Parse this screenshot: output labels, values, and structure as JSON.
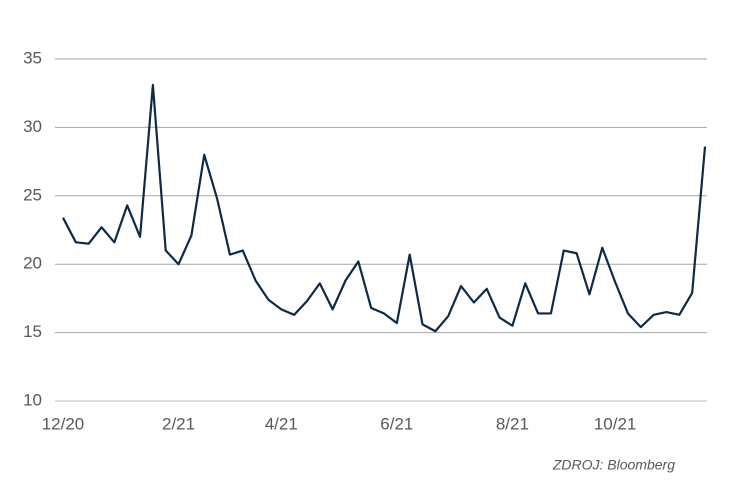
{
  "chart_data": {
    "type": "line",
    "categories": [
      "12/20",
      null,
      null,
      null,
      null,
      null,
      null,
      null,
      null,
      "2/21",
      null,
      null,
      null,
      null,
      null,
      null,
      null,
      "4/21",
      null,
      null,
      null,
      null,
      null,
      null,
      null,
      null,
      "6/21",
      null,
      null,
      null,
      null,
      null,
      null,
      null,
      null,
      "8/21",
      null,
      null,
      null,
      null,
      null,
      null,
      null,
      "10/21",
      null,
      null,
      null,
      null,
      null,
      null,
      null
    ],
    "series": [
      {
        "color": "#0d2a47",
        "values": [
          23.4,
          21.6,
          21.5,
          22.7,
          21.6,
          24.3,
          22.0,
          33.1,
          21.0,
          20.0,
          22.1,
          28.0,
          24.8,
          20.7,
          21.0,
          18.8,
          17.4,
          16.7,
          16.3,
          17.3,
          18.6,
          16.7,
          18.8,
          20.2,
          16.8,
          16.4,
          15.7,
          20.7,
          15.6,
          15.1,
          16.2,
          18.4,
          17.2,
          18.2,
          16.1,
          15.5,
          18.6,
          16.4,
          16.4,
          21.0,
          20.8,
          17.8,
          21.2,
          18.7,
          16.4,
          15.4,
          16.3,
          16.5,
          16.3,
          17.9,
          28.6
        ]
      }
    ],
    "ylim": [
      10,
      35
    ],
    "yticks": [
      10,
      15,
      20,
      25,
      30,
      35
    ],
    "grid": true,
    "source": "ZDROJ: Bloomberg"
  }
}
